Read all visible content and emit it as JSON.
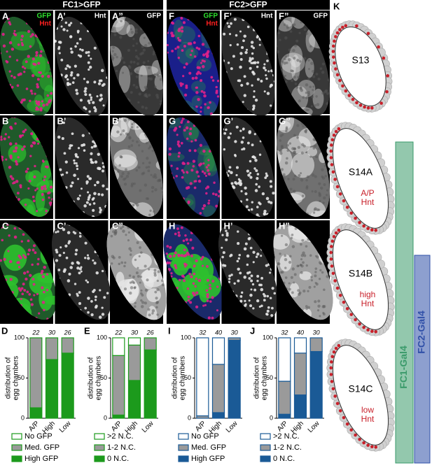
{
  "figure": {
    "groups": [
      {
        "title": "FC1>GFP",
        "rows": [
          [
            {
              "label": "A",
              "channels": [
                "GFP",
                "Hnt"
              ]
            },
            {
              "label": "A’",
              "channels": [
                "Hnt"
              ]
            },
            {
              "label": "A”",
              "channels": [
                "GFP"
              ]
            }
          ],
          [
            {
              "label": "B"
            },
            {
              "label": "B’"
            },
            {
              "label": "B”"
            }
          ],
          [
            {
              "label": "C"
            },
            {
              "label": "C’"
            },
            {
              "label": "C”"
            }
          ]
        ]
      },
      {
        "title": "FC2>GFP",
        "rows": [
          [
            {
              "label": "F",
              "channels": [
                "GFP",
                "Hnt"
              ]
            },
            {
              "label": "F’",
              "channels": [
                "Hnt"
              ]
            },
            {
              "label": "F”",
              "channels": [
                "GFP"
              ]
            }
          ],
          [
            {
              "label": "G"
            },
            {
              "label": "G’"
            },
            {
              "label": "G”"
            }
          ],
          [
            {
              "label": "H"
            },
            {
              "label": "H’"
            },
            {
              "label": "H”"
            }
          ]
        ]
      }
    ],
    "schematic": {
      "label": "K",
      "stages": [
        {
          "name": "S13"
        },
        {
          "name": "S14A",
          "note": [
            "A/P",
            "Hnt"
          ]
        },
        {
          "name": "S14B",
          "note": [
            "high",
            "Hnt"
          ]
        },
        {
          "name": "S14C",
          "note": [
            "low",
            "Hnt"
          ]
        }
      ],
      "lines": [
        {
          "name": "FC1-Gal4",
          "color": "#3a9a6a"
        },
        {
          "name": "FC2-Gal4",
          "color": "#3050a8"
        }
      ]
    }
  },
  "chart_data": [
    {
      "type": "bar",
      "stacked": true,
      "panel_label": "D",
      "color": "#1c9a1c",
      "y_label": [
        "distribution of",
        "egg chambers"
      ],
      "categories": [
        "A/P",
        "High",
        "Low"
      ],
      "counts": [
        22,
        30,
        26
      ],
      "ylim": [
        0,
        100
      ],
      "yticks": [
        0,
        50,
        100
      ],
      "series": [
        {
          "name": "High GFP",
          "color": "#1c9a1c",
          "values": [
            13,
            73,
            81
          ]
        },
        {
          "name": "Med. GFP",
          "color": "#9a9a9a",
          "values": [
            87,
            27,
            19
          ]
        },
        {
          "name": "No GFP",
          "color": "#ffffff",
          "values": [
            0,
            0,
            0
          ]
        }
      ]
    },
    {
      "type": "bar",
      "stacked": true,
      "panel_label": "E",
      "color": "#1c9a1c",
      "y_label": [
        "distribution of",
        "egg chambers"
      ],
      "categories": [
        "A/P",
        "High",
        "Low"
      ],
      "counts": [
        22,
        30,
        26
      ],
      "ylim": [
        0,
        100
      ],
      "yticks": [
        0,
        50,
        100
      ],
      "series": [
        {
          "name": "0 N.C.",
          "color": "#1c9a1c",
          "values": [
            4,
            47,
            85
          ]
        },
        {
          "name": "1-2 N.C.",
          "color": "#9a9a9a",
          "values": [
            74,
            44,
            15
          ]
        },
        {
          "name": ">2 N.C.",
          "color": "#ffffff",
          "values": [
            22,
            9,
            0
          ]
        }
      ]
    },
    {
      "type": "bar",
      "stacked": true,
      "panel_label": "I",
      "color": "#1a5a96",
      "y_label": [
        "distribution of",
        "egg chambers"
      ],
      "categories": [
        "A/P",
        "High",
        "Low"
      ],
      "counts": [
        32,
        40,
        30
      ],
      "ylim": [
        0,
        100
      ],
      "yticks": [
        0,
        50,
        100
      ],
      "series": [
        {
          "name": "High GFP",
          "color": "#1a5a96",
          "values": [
            0,
            7,
            97
          ]
        },
        {
          "name": "Med. GFP",
          "color": "#9a9a9a",
          "values": [
            3,
            60,
            3
          ]
        },
        {
          "name": "No GFP",
          "color": "#ffffff",
          "values": [
            97,
            33,
            0
          ]
        }
      ]
    },
    {
      "type": "bar",
      "stacked": true,
      "panel_label": "J",
      "color": "#1a5a96",
      "y_label": [
        "distribution of",
        "egg chambers"
      ],
      "categories": [
        "A/P",
        "High",
        "Low"
      ],
      "counts": [
        32,
        40,
        30
      ],
      "ylim": [
        0,
        100
      ],
      "yticks": [
        0,
        50,
        100
      ],
      "series": [
        {
          "name": "0 N.C.",
          "color": "#1a5a96",
          "values": [
            5,
            29,
            83
          ]
        },
        {
          "name": "1-2 N.C.",
          "color": "#9a9a9a",
          "values": [
            41,
            52,
            17
          ]
        },
        {
          "name": ">2 N.C.",
          "color": "#ffffff",
          "values": [
            54,
            19,
            0
          ]
        }
      ]
    }
  ]
}
